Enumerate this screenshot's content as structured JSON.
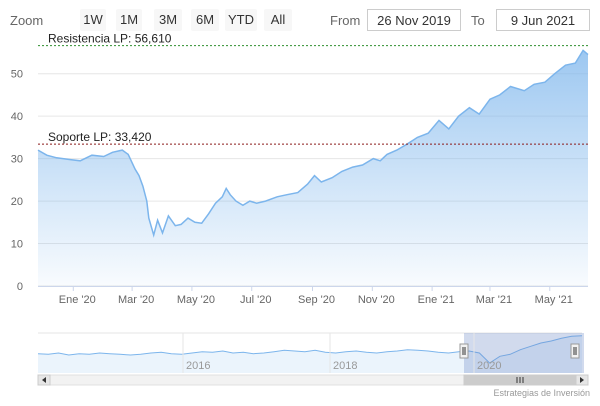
{
  "toolbar": {
    "zoom_label": "Zoom",
    "buttons": [
      "1W",
      "1M",
      "3M",
      "6M",
      "YTD",
      "All"
    ],
    "from_label": "From",
    "from_value": "26 Nov 2019",
    "to_label": "To",
    "to_value": "9 Jun 2021"
  },
  "credit": "Estrategias de Inversión",
  "colors": {
    "line": "#7cb5ec",
    "fill_top": "#7cb5ec",
    "resist": "#2f8f2f",
    "support": "#8b1a1a"
  },
  "chart_data": {
    "type": "area",
    "y_ticks": [
      "0",
      "10",
      "20",
      "30",
      "40",
      "50"
    ],
    "x_ticks": [
      "Ene '20",
      "Mar '20",
      "May '20",
      "Jul '20",
      "Sep '20",
      "Nov '20",
      "Ene '21",
      "Mar '21",
      "May '21"
    ],
    "ylim": [
      0,
      57
    ],
    "plot_lines": [
      {
        "label": "Resistencia LP: 56,610",
        "value": 56.61
      },
      {
        "label": "Soporte LP: 33,420",
        "value": 33.42
      }
    ],
    "navigator_labels": [
      "2016",
      "2018",
      "2020"
    ],
    "x": [
      "2019-11-26",
      "2019-12-05",
      "2019-12-15",
      "2019-12-28",
      "2020-01-08",
      "2020-01-20",
      "2020-02-01",
      "2020-02-10",
      "2020-02-20",
      "2020-02-26",
      "2020-03-04",
      "2020-03-08",
      "2020-03-12",
      "2020-03-16",
      "2020-03-18",
      "2020-03-23",
      "2020-03-27",
      "2020-04-01",
      "2020-04-07",
      "2020-04-14",
      "2020-04-20",
      "2020-04-27",
      "2020-05-04",
      "2020-05-11",
      "2020-05-18",
      "2020-05-25",
      "2020-06-01",
      "2020-06-05",
      "2020-06-09",
      "2020-06-15",
      "2020-06-22",
      "2020-06-29",
      "2020-07-06",
      "2020-07-15",
      "2020-07-27",
      "2020-08-06",
      "2020-08-17",
      "2020-08-27",
      "2020-09-03",
      "2020-09-10",
      "2020-09-21",
      "2020-10-01",
      "2020-10-12",
      "2020-10-22",
      "2020-11-02",
      "2020-11-09",
      "2020-11-16",
      "2020-11-26",
      "2020-12-07",
      "2020-12-17",
      "2020-12-28",
      "2021-01-08",
      "2021-01-18",
      "2021-01-28",
      "2021-02-08",
      "2021-02-18",
      "2021-03-01",
      "2021-03-11",
      "2021-03-22",
      "2021-04-05",
      "2021-04-15",
      "2021-04-26",
      "2021-05-06",
      "2021-05-17",
      "2021-05-27",
      "2021-06-04",
      "2021-06-09"
    ],
    "values": [
      32.0,
      30.8,
      30.2,
      29.8,
      29.5,
      30.8,
      30.5,
      31.5,
      32.0,
      31.0,
      27.5,
      26.0,
      23.5,
      20.0,
      16.0,
      12.0,
      15.5,
      12.5,
      16.5,
      14.2,
      14.5,
      16.0,
      15.0,
      14.8,
      17.0,
      19.5,
      21.0,
      23.0,
      21.5,
      20.0,
      19.0,
      20.0,
      19.5,
      20.0,
      21.0,
      21.5,
      22.0,
      24.0,
      26.0,
      24.5,
      25.5,
      27.0,
      28.0,
      28.5,
      30.0,
      29.5,
      31.0,
      32.0,
      33.5,
      35.0,
      36.0,
      39.0,
      37.0,
      40.0,
      42.0,
      40.5,
      44.0,
      45.0,
      47.0,
      46.0,
      47.5,
      48.0,
      50.0,
      52.0,
      52.5,
      55.5,
      54.5
    ],
    "nav_values": [
      29,
      28,
      30,
      27,
      29,
      28,
      30,
      29,
      28,
      27,
      28,
      30,
      31,
      29,
      28,
      30,
      32,
      31,
      33,
      30,
      31,
      29,
      30,
      32,
      34,
      33,
      32,
      34,
      31,
      30,
      32,
      33,
      31,
      30,
      32,
      33,
      35,
      34,
      33,
      31,
      30,
      32,
      33,
      30,
      15,
      25,
      28,
      35,
      40,
      45,
      48,
      52,
      55,
      56
    ]
  }
}
